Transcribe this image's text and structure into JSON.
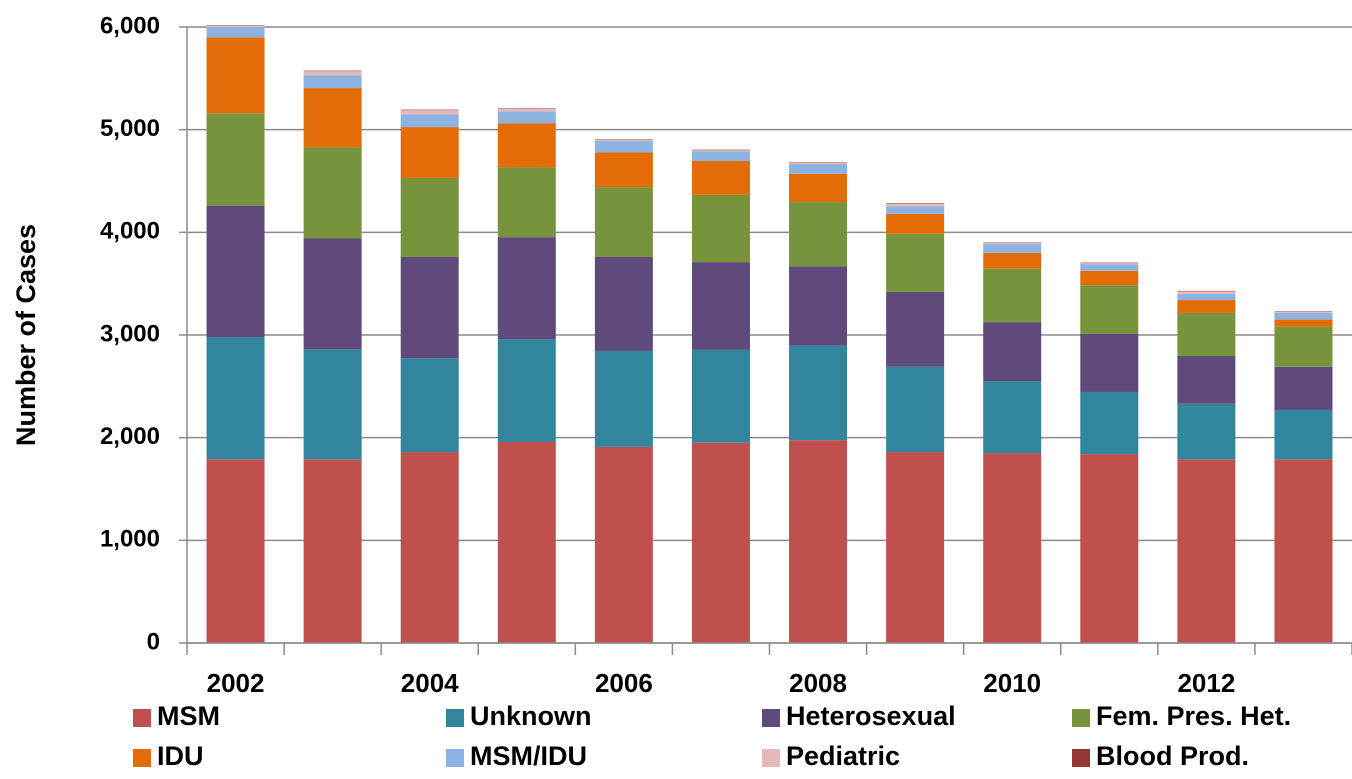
{
  "chart_data": {
    "type": "stacked_bar",
    "y_label": "Number of Cases",
    "categories": [
      "2002",
      null,
      "2004",
      null,
      "2006",
      null,
      "2008",
      null,
      "2010",
      null,
      "2012",
      null
    ],
    "series": [
      {
        "name": "MSM",
        "color": "#c0504d",
        "values": [
          1790,
          1790,
          1860,
          1958,
          1910,
          1950,
          1975,
          1860,
          1850,
          1840,
          1790,
          1790
        ]
      },
      {
        "name": "Unknown",
        "color": "#31859c",
        "values": [
          1190,
          1070,
          915,
          1000,
          935,
          905,
          920,
          830,
          700,
          605,
          540,
          480
        ]
      },
      {
        "name": "Heterosexual",
        "color": "#604a7b",
        "values": [
          1280,
          1080,
          985,
          995,
          915,
          855,
          775,
          730,
          575,
          565,
          465,
          420
        ]
      },
      {
        "name": "Fem. Pres. Het.",
        "color": "#77933c",
        "values": [
          900,
          890,
          770,
          680,
          680,
          655,
          625,
          565,
          520,
          475,
          420,
          390
        ]
      },
      {
        "name": "IDU",
        "color": "#e36c09",
        "values": [
          740,
          575,
          495,
          430,
          340,
          330,
          275,
          195,
          155,
          140,
          125,
          70
        ]
      },
      {
        "name": "MSM/IDU",
        "color": "#8db3e2",
        "values": [
          100,
          125,
          125,
          115,
          110,
          95,
          95,
          75,
          85,
          65,
          60,
          65
        ]
      },
      {
        "name": "Pediatric",
        "color": "#e6b9b8",
        "values": [
          10,
          40,
          40,
          25,
          10,
          10,
          10,
          25,
          10,
          10,
          25,
          10
        ]
      },
      {
        "name": "Blood Prod.",
        "color": "#953735",
        "values": [
          5,
          5,
          5,
          5,
          5,
          5,
          5,
          5,
          5,
          5,
          5,
          5
        ]
      }
    ],
    "ylim": [
      0,
      6000
    ],
    "yticks": [
      0,
      {
        "value": 1000,
        "label": "1,000"
      },
      {
        "value": 2000,
        "label": "2,000"
      },
      {
        "value": 3000,
        "label": "3,000"
      },
      {
        "value": 4000,
        "label": "4,000"
      },
      {
        "value": 5000,
        "label": "5,000"
      },
      {
        "value": 6000,
        "label": "6,000"
      }
    ],
    "grid": true
  }
}
